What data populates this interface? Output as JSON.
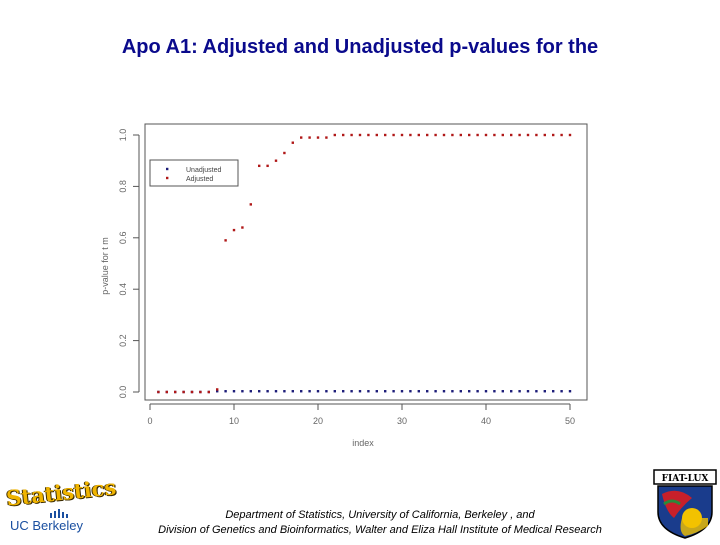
{
  "slide": {
    "title": "Apo A1: Adjusted and Unadjusted p-values for the",
    "footer_line1": "Department of Statistics, University of California, Berkeley , and",
    "footer_line2": "Division of Genetics and Bioinformatics, Walter and Eliza Hall Institute of Medical Research"
  },
  "logos": {
    "statistics_word": "Statistics",
    "statistics_org": "UC Berkeley",
    "fiat_lux_text": "FIAT-LUX"
  },
  "colors": {
    "title": "#0a0a8c",
    "unadjusted": "#1c1c78",
    "adjusted": "#b01818"
  },
  "chart_data": {
    "type": "scatter",
    "xlabel": "index",
    "ylabel": "p-value for t m",
    "xlim": [
      0,
      50
    ],
    "ylim": [
      0,
      1
    ],
    "xticks": [
      "0",
      "10",
      "20",
      "30",
      "40",
      "50"
    ],
    "yticks": [
      "0.0",
      "0.2",
      "0.4",
      "0.6",
      "0.8",
      "1.0"
    ],
    "x_tick_values": [
      0,
      10,
      20,
      30,
      40,
      50
    ],
    "y_tick_values": [
      0,
      0.2,
      0.4,
      0.6,
      0.8,
      1.0
    ],
    "legend_position": "top-left",
    "series": [
      {
        "name": "Unadjusted",
        "x": [
          1,
          2,
          3,
          4,
          5,
          6,
          7,
          8,
          9,
          10,
          11,
          12,
          13,
          14,
          15,
          16,
          17,
          18,
          19,
          20,
          21,
          22,
          23,
          24,
          25,
          26,
          27,
          28,
          29,
          30,
          31,
          32,
          33,
          34,
          35,
          36,
          37,
          38,
          39,
          40,
          41,
          42,
          43,
          44,
          45,
          46,
          47,
          48,
          49,
          50
        ],
        "y": [
          0,
          0,
          0,
          0,
          0,
          0,
          0,
          0.003,
          0.003,
          0.003,
          0.003,
          0.003,
          0.003,
          0.003,
          0.003,
          0.003,
          0.003,
          0.003,
          0.003,
          0.003,
          0.003,
          0.003,
          0.003,
          0.003,
          0.003,
          0.003,
          0.003,
          0.003,
          0.003,
          0.003,
          0.003,
          0.003,
          0.003,
          0.003,
          0.003,
          0.003,
          0.003,
          0.003,
          0.003,
          0.003,
          0.003,
          0.003,
          0.003,
          0.003,
          0.003,
          0.003,
          0.003,
          0.003,
          0.003,
          0.003
        ]
      },
      {
        "name": "Adjusted",
        "x": [
          1,
          2,
          3,
          4,
          5,
          6,
          7,
          8,
          9,
          10,
          11,
          12,
          13,
          14,
          15,
          16,
          17,
          18,
          19,
          20,
          21,
          22,
          23,
          24,
          25,
          26,
          27,
          28,
          29,
          30,
          31,
          32,
          33,
          34,
          35,
          36,
          37,
          38,
          39,
          40,
          41,
          42,
          43,
          44,
          45,
          46,
          47,
          48,
          49,
          50
        ],
        "y": [
          0,
          0,
          0,
          0,
          0,
          0,
          0,
          0.01,
          0.59,
          0.63,
          0.64,
          0.73,
          0.88,
          0.88,
          0.9,
          0.93,
          0.97,
          0.99,
          0.99,
          0.99,
          0.99,
          1.0,
          1.0,
          1.0,
          1.0,
          1.0,
          1.0,
          1.0,
          1.0,
          1.0,
          1.0,
          1.0,
          1.0,
          1.0,
          1.0,
          1.0,
          1.0,
          1.0,
          1.0,
          1.0,
          1.0,
          1.0,
          1.0,
          1.0,
          1.0,
          1.0,
          1.0,
          1.0,
          1.0,
          1.0
        ]
      }
    ]
  }
}
